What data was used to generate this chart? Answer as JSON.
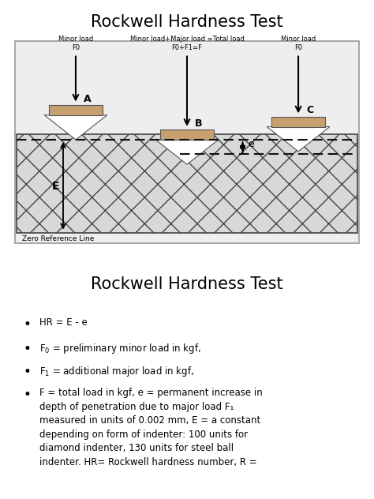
{
  "title1": "Rockwell Hardness Test",
  "title2": "Rockwell Hardness Test",
  "indenter_color": "#c8a070",
  "slab_hatch": "x",
  "slab_facecolor": "#e0e0e0",
  "slab_edgecolor": "#444444",
  "bg_color": "#eeeeee",
  "text_A_line1": "Minor load",
  "text_A_line2": "F0",
  "text_B_line1": "Minor load+Major load =Total load",
  "text_B_line2": "F0+F1=F",
  "text_C_line1": "Minor load",
  "text_C_line2": "F0",
  "label_A": "A",
  "label_B": "B",
  "label_C": "C",
  "label_e": "e",
  "label_E": "E",
  "zero_ref": "Zero Reference Line",
  "bullet1": "HR = E - e",
  "bullet2_pre": "F",
  "bullet2_sub": "0",
  "bullet2_post": " = preliminary minor load in kgf,",
  "bullet3_pre": "F",
  "bullet3_sub": "1",
  "bullet3_post": " = additional major load in kgf,",
  "bullet4": "F = total load in kgf, e = permanent increase in\ndepth of penetration due to major load F",
  "bullet4_sub": "1",
  "bullet4_cont": "\nmeasured in units of 0.002 mm, E = a constant\ndepending on form of indenter: 100 units for\ndiamond indenter, 130 units for steel ball\nindenter. HR= Rockwell hardness number, R ="
}
